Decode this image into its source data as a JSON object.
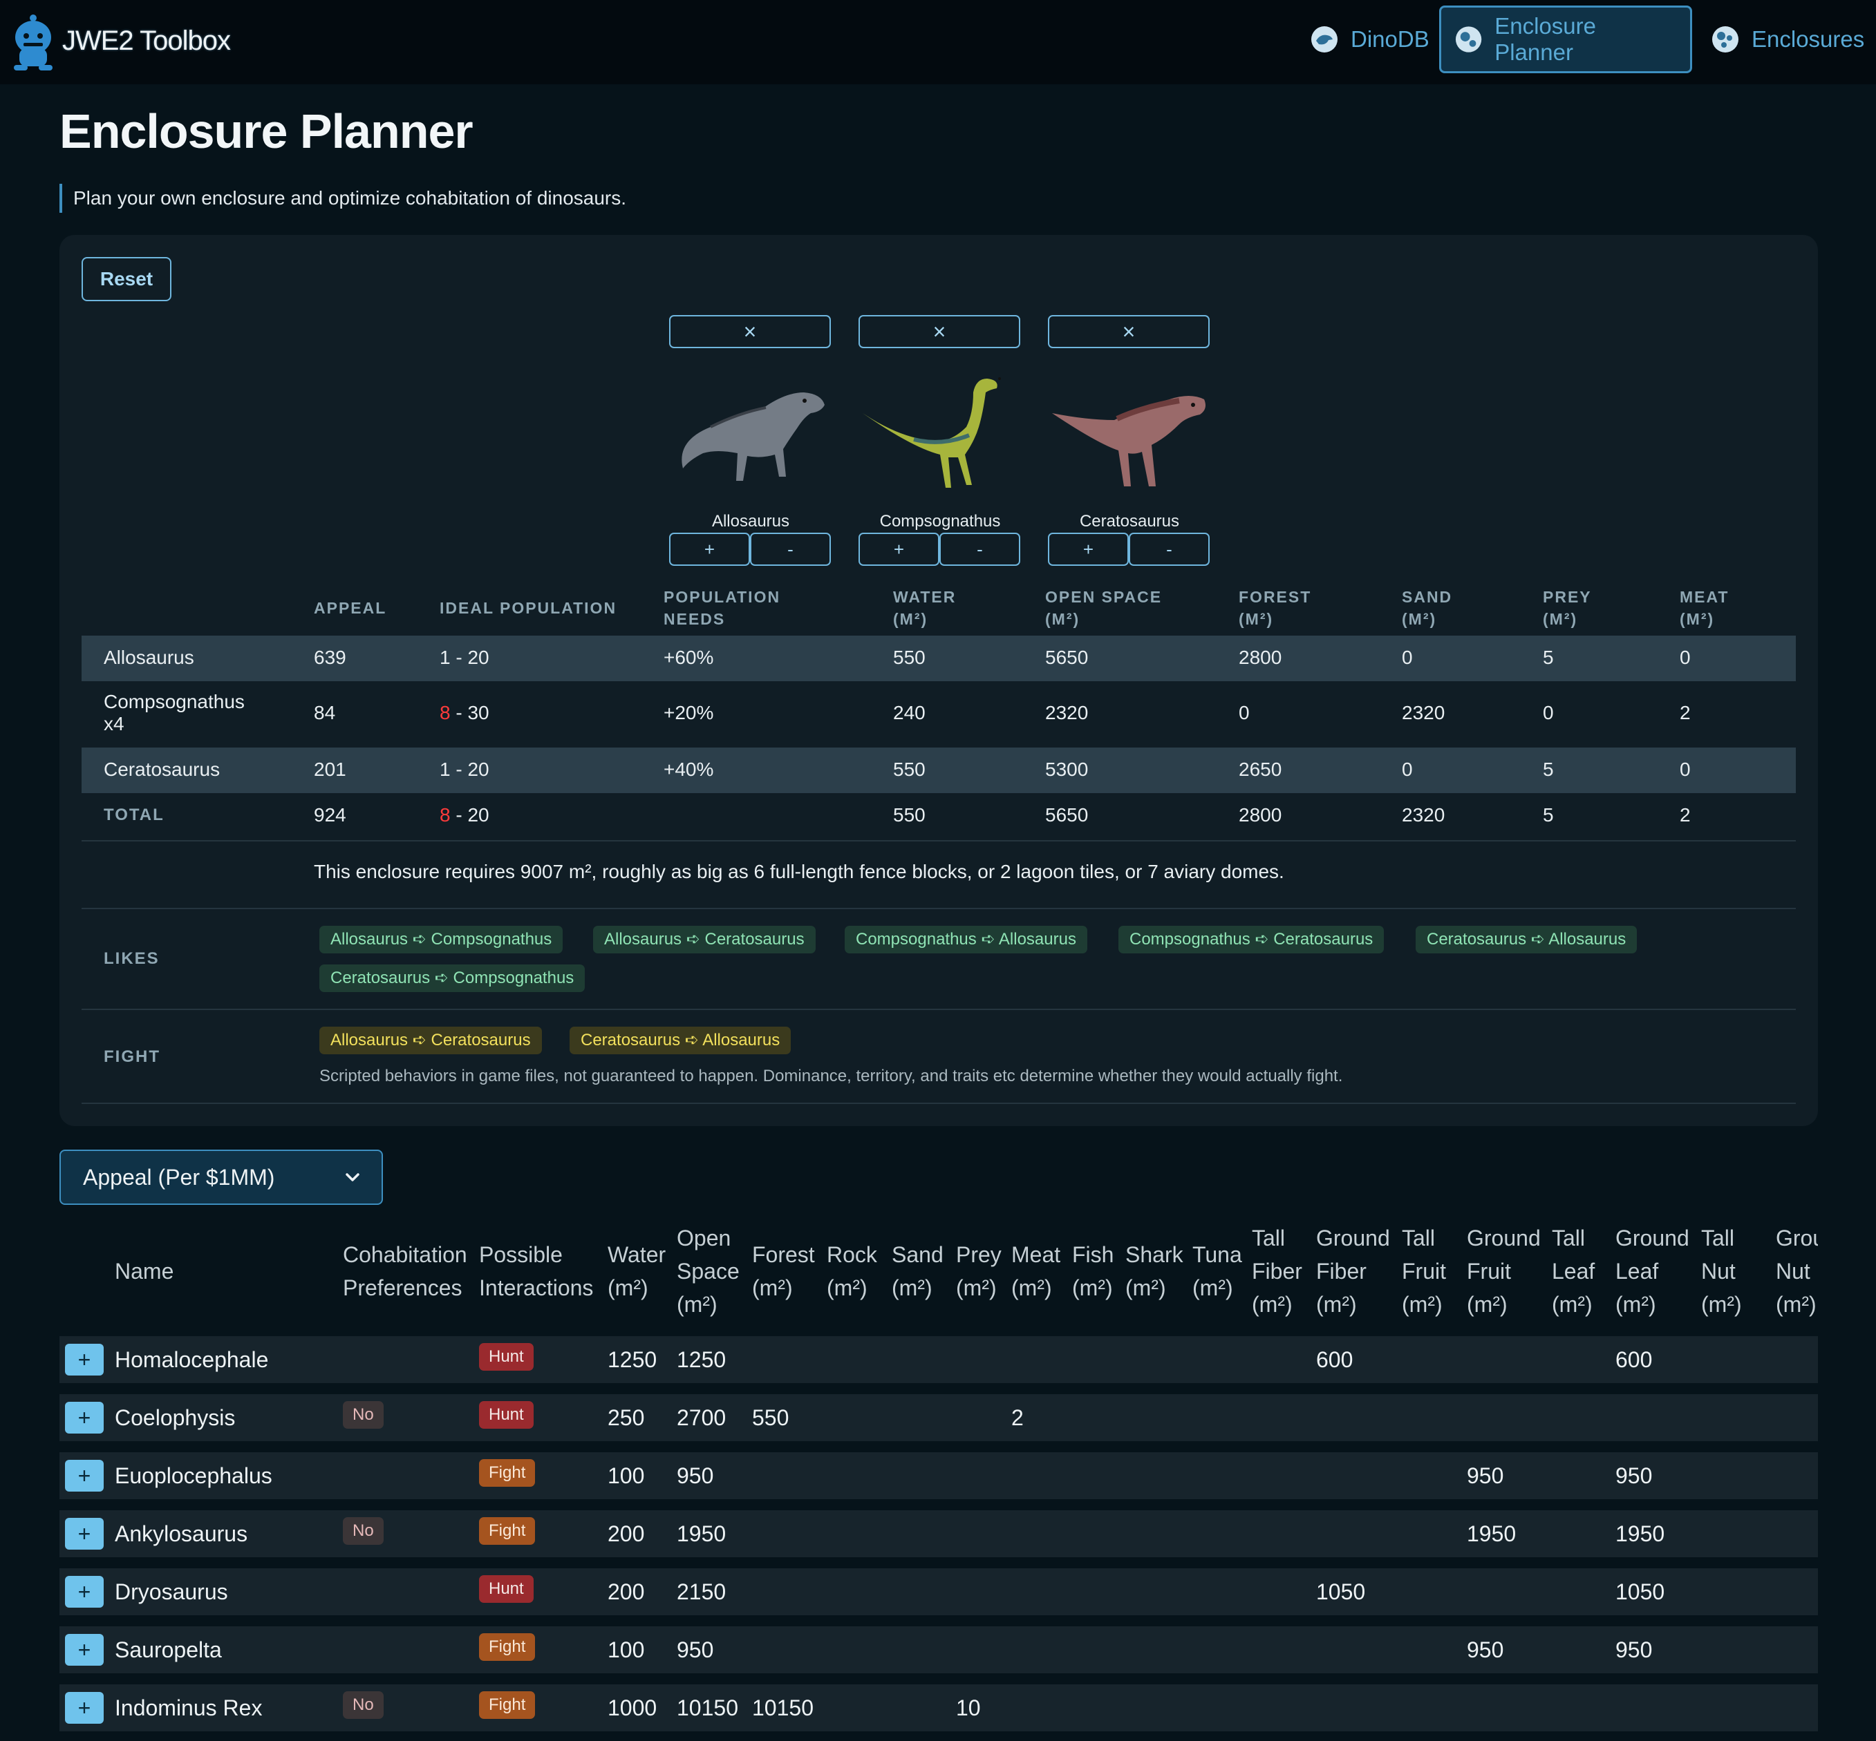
{
  "brand": {
    "name": "JWE2 Toolbox"
  },
  "nav": {
    "dinodb": "DinoDB",
    "planner": "Enclosure Planner",
    "enclosures": "Enclosures"
  },
  "page": {
    "title": "Enclosure Planner",
    "subtitle": "Plan your own enclosure and optimize cohabitation of dinosaurs."
  },
  "planner": {
    "reset_label": "Reset",
    "remove_glyph": "×",
    "plus_glyph": "+",
    "minus_glyph": "-",
    "dinos": [
      {
        "name": "Allosaurus"
      },
      {
        "name": "Compsognathus"
      },
      {
        "name": "Ceratosaurus"
      }
    ],
    "headers": {
      "appeal": "APPEAL",
      "ideal_population": "IDEAL POPULATION",
      "population_needs_1": "POPULATION",
      "population_needs_2": "NEEDS",
      "water_1": "WATER",
      "open_space_1": "OPEN SPACE",
      "forest_1": "FOREST",
      "sand_1": "SAND",
      "prey_1": "PREY",
      "meat_1": "MEAT",
      "unit": "(M²)"
    },
    "rows": [
      {
        "name": "Allosaurus",
        "appeal": "639",
        "pop_low": "1",
        "pop_rest": " - 20",
        "needs": "+60%",
        "water": "550",
        "open_space": "5650",
        "forest": "2800",
        "sand": "0",
        "prey": "5",
        "meat": "0"
      },
      {
        "name_1": "Compsognathus",
        "name_2": "x4",
        "appeal": "84",
        "pop_low": "8",
        "pop_rest": " - 30",
        "needs": "+20%",
        "water": "240",
        "open_space": "2320",
        "forest": "0",
        "sand": "2320",
        "prey": "0",
        "meat": "2"
      },
      {
        "name": "Ceratosaurus",
        "appeal": "201",
        "pop_low": "1",
        "pop_rest": " - 20",
        "needs": "+40%",
        "water": "550",
        "open_space": "5300",
        "forest": "2650",
        "sand": "0",
        "prey": "5",
        "meat": "0"
      }
    ],
    "total": {
      "label": "TOTAL",
      "appeal": "924",
      "pop_low": "8",
      "pop_rest": " - 20",
      "water": "550",
      "open_space": "5650",
      "forest": "2800",
      "sand": "2320",
      "prey": "5",
      "meat": "2"
    },
    "requirement": "This enclosure requires 9007 m², roughly as big as 6 full-length fence blocks, or 2 lagoon tiles, or 7 aviary domes.",
    "likes_label": "LIKES",
    "likes": [
      "Allosaurus ➪ Compsognathus",
      "Allosaurus ➪ Ceratosaurus",
      "Compsognathus ➪ Allosaurus",
      "Compsognathus ➪ Ceratosaurus",
      "Ceratosaurus ➪ Allosaurus",
      "Ceratosaurus ➪ Compsognathus"
    ],
    "fight_label": "FIGHT",
    "fights": [
      "Allosaurus ➪ Ceratosaurus",
      "Ceratosaurus ➪ Allosaurus"
    ],
    "fight_note": "Scripted behaviors in game files, not guaranteed to happen. Dominance, territory, and traits etc determine whether they would actually fight."
  },
  "sort_select": {
    "value": "Appeal (Per $1MM)"
  },
  "table": {
    "headers": {
      "name": "Name",
      "cohab_1": "Cohabitation",
      "cohab_2": "Preferences",
      "interact_1": "Possible",
      "interact_2": "Interactions",
      "water": "Water",
      "open_1": "Open",
      "open_2": "Space",
      "forest": "Forest",
      "rock": "Rock",
      "sand": "Sand",
      "prey": "Prey",
      "meat": "Meat",
      "fish": "Fish",
      "shark": "Shark",
      "tuna": "Tuna",
      "tall_fiber_1": "Tall",
      "tall_fiber_2": "Fiber",
      "ground_fiber_1": "Ground",
      "ground_fiber_2": "Fiber",
      "tall_fruit_1": "Tall",
      "tall_fruit_2": "Fruit",
      "ground_fruit_1": "Ground",
      "ground_fruit_2": "Fruit",
      "tall_leaf_1": "Tall",
      "tall_leaf_2": "Leaf",
      "ground_leaf_1": "Ground",
      "ground_leaf_2": "Leaf",
      "tall_nut_1": "Tall",
      "tall_nut_2": "Nut",
      "ground_nut_1": "Grou",
      "ground_nut_2": "Nut",
      "unit": "(m²)"
    },
    "rows": [
      {
        "name": "Homalocephale",
        "cohab": "",
        "interaction": "Hunt",
        "water": "1250",
        "open": "1250",
        "forest": "",
        "prey": "",
        "meat": "",
        "ground_fiber": "600",
        "ground_fruit": "",
        "ground_leaf": "600"
      },
      {
        "name": "Coelophysis",
        "cohab": "No",
        "interaction": "Hunt",
        "water": "250",
        "open": "2700",
        "forest": "550",
        "prey": "",
        "meat": "2",
        "ground_fiber": "",
        "ground_fruit": "",
        "ground_leaf": ""
      },
      {
        "name": "Euoplocephalus",
        "cohab": "",
        "interaction": "Fight",
        "water": "100",
        "open": "950",
        "forest": "",
        "prey": "",
        "meat": "",
        "ground_fiber": "",
        "ground_fruit": "950",
        "ground_leaf": "950"
      },
      {
        "name": "Ankylosaurus",
        "cohab": "No",
        "interaction": "Fight",
        "water": "200",
        "open": "1950",
        "forest": "",
        "prey": "",
        "meat": "",
        "ground_fiber": "",
        "ground_fruit": "1950",
        "ground_leaf": "1950"
      },
      {
        "name": "Dryosaurus",
        "cohab": "",
        "interaction": "Hunt",
        "water": "200",
        "open": "2150",
        "forest": "",
        "prey": "",
        "meat": "",
        "ground_fiber": "1050",
        "ground_fruit": "",
        "ground_leaf": "1050"
      },
      {
        "name": "Sauropelta",
        "cohab": "",
        "interaction": "Fight",
        "water": "100",
        "open": "950",
        "forest": "",
        "prey": "",
        "meat": "",
        "ground_fiber": "",
        "ground_fruit": "950",
        "ground_leaf": "950"
      },
      {
        "name": "Indominus Rex",
        "cohab": "No",
        "interaction": "Fight",
        "water": "1000",
        "open": "10150",
        "forest": "10150",
        "prey": "10",
        "meat": "",
        "ground_fiber": "",
        "ground_fruit": "",
        "ground_leaf": ""
      }
    ]
  }
}
